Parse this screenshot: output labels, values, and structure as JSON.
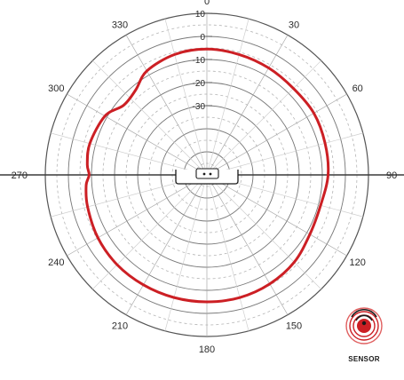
{
  "chart_data": {
    "type": "polar-line",
    "units": "dB",
    "angle_unit": "degrees",
    "angle_ticks": [
      "0",
      "30",
      "60",
      "90",
      "120",
      "150",
      "180",
      "210",
      "240",
      "270",
      "300",
      "330"
    ],
    "radial_tick_labels": [
      "10",
      "0",
      "-10",
      "-20",
      "-30"
    ],
    "radial_values": [
      10,
      0,
      -10,
      -20,
      -30
    ],
    "r_range": [
      -60,
      10
    ],
    "grid": true,
    "series": [
      {
        "color": "#cc1f24",
        "points": [
          {
            "angle": 0,
            "value": -5.5
          },
          {
            "angle": 15,
            "value": -6
          },
          {
            "angle": 30,
            "value": -6.5
          },
          {
            "angle": 45,
            "value": -7
          },
          {
            "angle": 60,
            "value": -6.5
          },
          {
            "angle": 75,
            "value": -7
          },
          {
            "angle": 90,
            "value": -7.5
          },
          {
            "angle": 105,
            "value": -9
          },
          {
            "angle": 120,
            "value": -8.5
          },
          {
            "angle": 135,
            "value": -6.5
          },
          {
            "angle": 150,
            "value": -5.5
          },
          {
            "angle": 165,
            "value": -5
          },
          {
            "angle": 180,
            "value": -5
          },
          {
            "angle": 195,
            "value": -5
          },
          {
            "angle": 210,
            "value": -5
          },
          {
            "angle": 225,
            "value": -5
          },
          {
            "angle": 240,
            "value": -5.5
          },
          {
            "angle": 255,
            "value": -6.5
          },
          {
            "angle": 265,
            "value": -7.5
          },
          {
            "angle": 270,
            "value": -9
          },
          {
            "angle": 275,
            "value": -8
          },
          {
            "angle": 285,
            "value": -7.5
          },
          {
            "angle": 300,
            "value": -9
          },
          {
            "angle": 310,
            "value": -13
          },
          {
            "angle": 320,
            "value": -12
          },
          {
            "angle": 330,
            "value": -8
          },
          {
            "angle": 345,
            "value": -6
          }
        ]
      }
    ]
  },
  "brand": {
    "label": "SENSOR",
    "color": "#cc1f24"
  }
}
